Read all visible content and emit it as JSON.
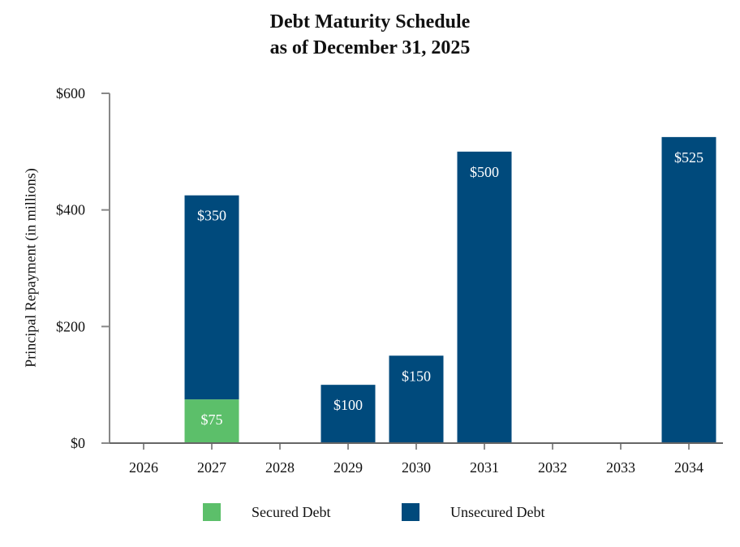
{
  "chart_data": {
    "type": "bar",
    "stacked": true,
    "title": "Debt Maturity Schedule",
    "subtitle": "as of December 31, 2025",
    "xlabel": "",
    "ylabel": "Principal Repayment (in millions)",
    "categories": [
      "2026",
      "2027",
      "2028",
      "2029",
      "2030",
      "2031",
      "2032",
      "2033",
      "2034"
    ],
    "ylim": [
      0,
      600
    ],
    "yticks": [
      0,
      200,
      400,
      600
    ],
    "ytick_labels": [
      "$0",
      "$200",
      "$400",
      "$600"
    ],
    "grid": false,
    "legend_position": "bottom",
    "series": [
      {
        "name": "Secured Debt",
        "color": "#5cbf6a",
        "values": [
          0,
          75,
          0,
          0,
          0,
          0,
          0,
          0,
          0
        ],
        "labels": [
          "",
          "$75",
          "",
          "",
          "",
          "",
          "",
          "",
          ""
        ]
      },
      {
        "name": "Unsecured Debt",
        "color": "#004a7c",
        "values": [
          0,
          350,
          0,
          100,
          150,
          500,
          0,
          0,
          525
        ],
        "labels": [
          "",
          "$350",
          "",
          "$100",
          "$150",
          "$500",
          "",
          "",
          "$525"
        ]
      }
    ]
  }
}
